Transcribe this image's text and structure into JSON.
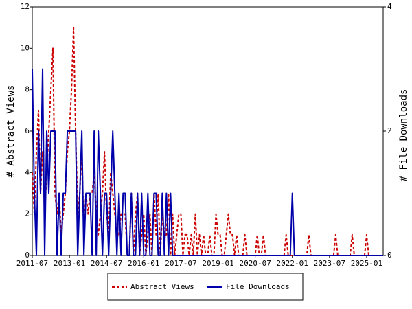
{
  "chart_data": {
    "type": "line",
    "ylabel": "# Abstract Views",
    "y2label": "# File Downloads",
    "x": [
      "2011-07",
      "2011-08",
      "2011-09",
      "2011-10",
      "2011-11",
      "2011-12",
      "2012-01",
      "2012-02",
      "2012-03",
      "2012-04",
      "2012-05",
      "2012-06",
      "2012-07",
      "2012-08",
      "2012-09",
      "2012-10",
      "2012-11",
      "2012-12",
      "2013-01",
      "2013-02",
      "2013-03",
      "2013-04",
      "2013-05",
      "2013-06",
      "2013-07",
      "2013-08",
      "2013-09",
      "2013-10",
      "2013-11",
      "2013-12",
      "2014-01",
      "2014-02",
      "2014-03",
      "2014-04",
      "2014-05",
      "2014-06",
      "2014-07",
      "2014-08",
      "2014-09",
      "2014-10",
      "2014-11",
      "2014-12",
      "2015-01",
      "2015-02",
      "2015-03",
      "2015-04",
      "2015-05",
      "2015-06",
      "2015-07",
      "2015-08",
      "2015-09",
      "2015-10",
      "2015-11",
      "2015-12",
      "2016-01",
      "2016-02",
      "2016-03",
      "2016-04",
      "2016-05",
      "2016-06",
      "2016-07",
      "2016-08",
      "2016-09",
      "2016-10",
      "2016-11",
      "2016-12",
      "2017-01",
      "2017-02",
      "2017-03",
      "2017-04",
      "2017-05",
      "2017-06",
      "2017-07",
      "2017-08",
      "2017-09",
      "2017-10",
      "2017-11",
      "2017-12",
      "2018-01",
      "2018-02",
      "2018-03",
      "2018-04",
      "2018-05",
      "2018-06",
      "2018-07",
      "2018-08",
      "2018-09",
      "2018-10",
      "2018-11",
      "2018-12",
      "2019-01",
      "2019-02",
      "2019-03",
      "2019-04",
      "2019-05",
      "2019-06",
      "2019-07",
      "2019-08",
      "2019-09",
      "2019-10",
      "2019-11",
      "2019-12",
      "2020-01",
      "2020-02",
      "2020-03",
      "2020-04",
      "2020-05",
      "2020-06",
      "2020-07",
      "2020-08",
      "2020-09",
      "2020-10",
      "2020-11",
      "2020-12",
      "2021-01",
      "2021-02",
      "2021-03",
      "2021-04",
      "2021-05",
      "2021-06",
      "2021-07",
      "2021-08",
      "2021-09",
      "2021-10",
      "2021-11",
      "2021-12",
      "2022-01",
      "2022-02",
      "2022-03",
      "2022-04",
      "2022-05",
      "2022-06",
      "2022-07",
      "2022-08",
      "2022-09",
      "2022-10",
      "2022-11",
      "2022-12",
      "2023-01",
      "2023-02",
      "2023-03",
      "2023-04",
      "2023-05",
      "2023-06",
      "2023-07",
      "2023-08",
      "2023-09",
      "2023-10",
      "2023-11",
      "2023-12",
      "2024-01",
      "2024-02",
      "2024-03",
      "2024-04",
      "2024-05",
      "2024-06",
      "2024-07",
      "2024-08",
      "2024-09",
      "2024-10",
      "2024-11",
      "2024-12",
      "2025-01",
      "2025-02",
      "2025-03",
      "2025-04",
      "2025-05",
      "2025-06",
      "2025-07",
      "2025-08",
      "2025-09"
    ],
    "series": [
      {
        "name": "Abstract Views",
        "color": "#cc0000",
        "dashed": true,
        "axis": "y",
        "values": [
          4,
          2,
          5,
          7,
          3,
          5,
          2,
          4,
          6,
          8,
          10,
          3,
          2,
          3,
          1,
          2,
          3,
          5,
          6,
          8,
          11,
          6,
          2,
          3,
          5,
          1,
          3,
          2,
          3,
          3,
          4,
          2,
          1,
          2,
          3,
          5,
          2,
          1,
          4,
          3,
          2,
          1,
          1,
          2,
          2,
          2,
          0,
          0,
          3,
          0,
          2,
          3,
          0,
          1,
          2,
          0,
          1,
          2,
          0,
          3,
          1,
          3,
          0,
          2,
          1,
          1,
          3,
          0,
          2,
          0,
          1,
          2,
          2,
          0,
          1,
          1,
          0,
          1,
          0,
          2,
          0,
          1,
          0,
          1,
          0,
          0,
          1,
          0,
          0,
          2,
          1,
          1,
          0,
          0,
          1,
          2,
          1,
          1,
          0,
          1,
          0,
          0,
          0,
          1,
          0,
          0,
          0,
          0,
          0,
          1,
          0,
          0,
          1,
          0,
          0,
          0,
          0,
          0,
          0,
          0,
          0,
          0,
          0,
          1,
          0,
          0,
          0,
          0,
          0,
          0,
          0,
          0,
          0,
          0,
          1,
          0,
          0,
          0,
          0,
          0,
          0,
          0,
          0,
          0,
          0,
          0,
          0,
          1,
          0,
          0,
          0,
          0,
          0,
          0,
          0,
          1,
          0,
          0,
          0,
          0,
          0,
          0,
          1,
          0,
          0,
          0,
          0,
          0,
          0,
          0,
          0
        ]
      },
      {
        "name": "File Downloads",
        "color": "#0000aa",
        "dashed": false,
        "axis": "y2",
        "values": [
          3,
          1,
          0,
          2,
          1,
          3,
          0,
          2,
          1,
          2,
          2,
          2,
          0,
          1,
          0,
          1,
          1,
          2,
          2,
          2,
          2,
          2,
          0,
          1,
          2,
          0,
          1,
          1,
          1,
          0,
          2,
          0,
          2,
          1,
          0,
          1,
          1,
          0,
          1,
          2,
          1,
          0,
          1,
          0,
          1,
          1,
          0,
          0,
          1,
          0,
          0,
          1,
          0,
          1,
          0,
          0,
          1,
          0,
          0,
          1,
          1,
          0,
          0,
          1,
          0,
          1,
          0,
          1,
          0,
          0,
          0,
          0,
          0,
          0,
          0,
          0,
          0,
          0,
          0,
          0,
          0,
          0,
          0,
          0,
          0,
          0,
          0,
          0,
          0,
          0,
          0,
          0,
          0,
          0,
          0,
          0,
          0,
          0,
          0,
          0,
          0,
          0,
          0,
          0,
          0,
          0,
          0,
          0,
          0,
          0,
          0,
          0,
          0,
          0,
          0,
          0,
          0,
          0,
          0,
          0,
          0,
          0,
          0,
          0,
          0,
          0,
          1,
          0,
          0,
          0,
          0,
          0,
          0,
          0,
          0,
          0,
          0,
          0,
          0,
          0,
          0,
          0,
          0,
          0,
          0,
          0,
          0,
          0,
          0,
          0,
          0,
          0,
          0,
          0,
          0,
          0,
          0,
          0,
          0,
          0,
          0,
          0,
          0,
          0,
          0,
          0,
          0,
          0,
          0,
          0,
          0
        ]
      }
    ],
    "xlim": [
      "2011-07",
      "2025-09"
    ],
    "xticks": [
      "2011-07",
      "2013-01",
      "2014-07",
      "2016-01",
      "2017-07",
      "2019-01",
      "2020-07",
      "2022-01",
      "2023-07",
      "2025-01"
    ],
    "ylim": [
      0,
      12
    ],
    "yticks": [
      0,
      2,
      4,
      6,
      8,
      10,
      12
    ],
    "y2lim": [
      0,
      4
    ],
    "y2ticks": [
      0,
      2,
      4
    ],
    "legend": "bottom"
  }
}
